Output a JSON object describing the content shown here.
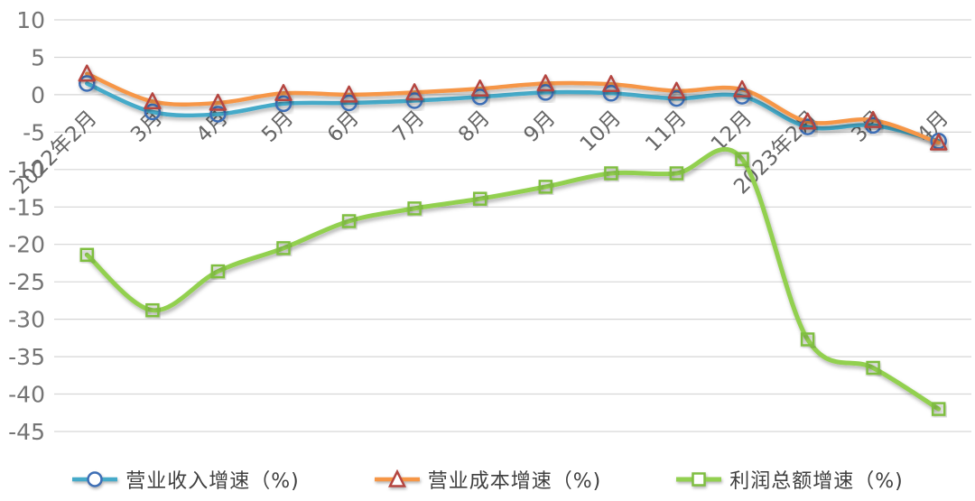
{
  "chart_data": {
    "type": "line",
    "title": "",
    "smooth": true,
    "grid": true,
    "legend_position": "bottom",
    "categories": [
      "2022年2月",
      "3月",
      "4月",
      "5月",
      "6月",
      "7月",
      "8月",
      "9月",
      "10月",
      "11月",
      "12月",
      "2023年2月",
      "3月",
      "4月"
    ],
    "series": [
      {
        "name": "营业收入增速（%)",
        "marker": "circle",
        "line_color": "#45AAC9",
        "marker_color": "#3D6EB5",
        "values": [
          1.5,
          -2.3,
          -2.6,
          -1.2,
          -1.1,
          -0.8,
          -0.3,
          0.3,
          0.2,
          -0.5,
          -0.2,
          -4.3,
          -4.1,
          -6.2
        ]
      },
      {
        "name": "营业成本增速（%)",
        "marker": "triangle",
        "line_color": "#F69646",
        "marker_color": "#B5453F",
        "values": [
          2.8,
          -0.9,
          -1.1,
          0.2,
          0.0,
          0.3,
          0.8,
          1.5,
          1.4,
          0.5,
          0.7,
          -3.6,
          -3.4,
          -6.4
        ]
      },
      {
        "name": "利润总额增速（%)",
        "marker": "square",
        "line_color": "#92D050",
        "marker_color": "#7FBE41",
        "values": [
          -21.4,
          -28.8,
          -23.6,
          -20.5,
          -16.9,
          -15.2,
          -13.9,
          -12.3,
          -10.5,
          -10.5,
          -8.6,
          -32.7,
          -36.5,
          -42.0
        ]
      }
    ],
    "y_axis": {
      "min": -45,
      "max": 10,
      "step": 5,
      "tick_labels": [
        "10",
        "5",
        "0",
        "-5",
        "-10",
        "-15",
        "-20",
        "-25",
        "-30",
        "-35",
        "-40",
        "-45"
      ]
    },
    "x_axis": {
      "label_rotation_deg": -45
    }
  },
  "colors": {
    "background": "#FFFFFF",
    "gridline": "#D6D6D6",
    "y_tick_text": "#757575",
    "x_tick_text": "#666666",
    "legend_text": "#3F3F3F"
  }
}
